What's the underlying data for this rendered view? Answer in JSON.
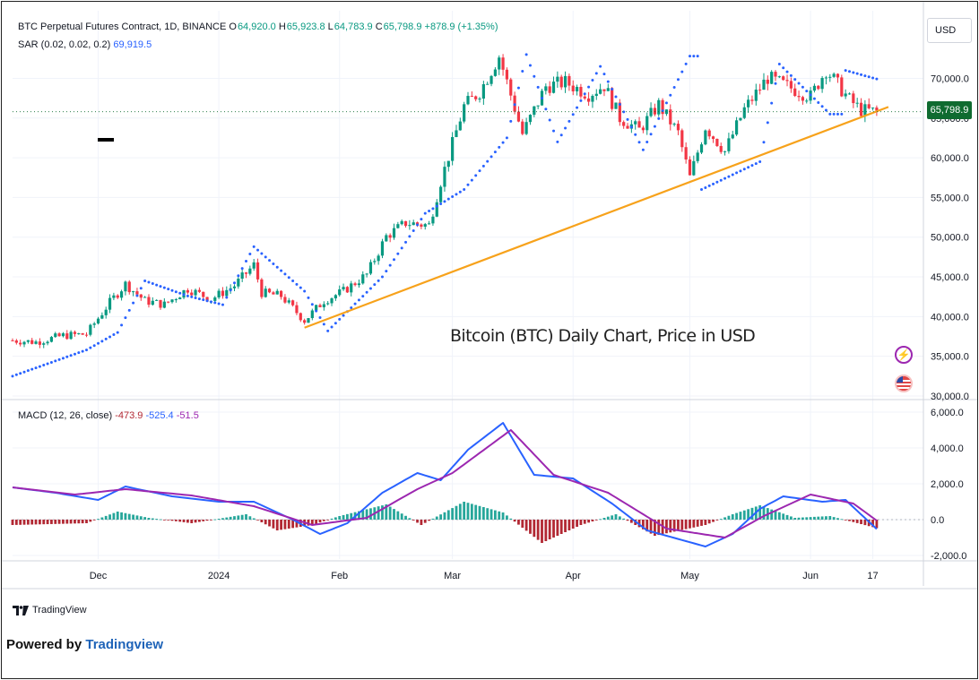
{
  "header": {
    "symbol": "BTC Perpetual Futures Contract, 1D, BINANCE",
    "open_label": "O",
    "open": "64,920.0",
    "high_label": "H",
    "high": "65,923.8",
    "low_label": "L",
    "low": "64,783.9",
    "close_label": "C",
    "close": "65,798.9",
    "change": "+878.9 (+1.35%)",
    "sar_label": "SAR (0.02, 0.02, 0.2)",
    "sar_value": "69,919.5",
    "macd_label": "MACD (12, 26, close)",
    "macd_hist": "-473.9",
    "macd_line": "-525.4",
    "macd_signal": "-51.5"
  },
  "currency_button": "USD",
  "last_price": "65,798.9",
  "annotation": "Bitcoin (BTC) Daily Chart, Price in USD",
  "footer": {
    "tv_logo": "TradingView",
    "powered_prefix": "Powered by ",
    "powered_brand": "Tradingview"
  },
  "icons": {
    "flash": "flash-icon",
    "flag": "us-flag-icon",
    "tv": "tradingview-logo-icon"
  },
  "colors": {
    "up": "#089981",
    "down": "#f23645",
    "sar": "#2962ff",
    "trendline": "#f7a21b",
    "macd": "#2962ff",
    "signal": "#9c27b0",
    "hist_up": "#26a69a",
    "hist_down": "#b22833"
  },
  "chart_data": [
    {
      "type": "candlestick",
      "title": "BTC Perpetual Futures Contract, 1D, BINANCE",
      "ylim": [
        30000,
        74000
      ],
      "y_ticks": [
        30000,
        35000,
        40000,
        45000,
        50000,
        55000,
        60000,
        65000,
        70000
      ],
      "y_tick_labels": [
        "30,000.0",
        "35,000.0",
        "40,000.0",
        "45,000.0",
        "50,000.0",
        "55,000.0",
        "60,000.0",
        "65,000.0",
        "70,000.0"
      ],
      "x_tick_labels": [
        {
          "label": "Dec",
          "date": "2023-12-01"
        },
        {
          "label": "2024",
          "date": "2024-01-01"
        },
        {
          "label": "Feb",
          "date": "2024-02-01"
        },
        {
          "label": "Mar",
          "date": "2024-03-01"
        },
        {
          "label": "Apr",
          "date": "2024-04-01"
        },
        {
          "label": "May",
          "date": "2024-05-01"
        },
        {
          "label": "Jun",
          "date": "2024-06-01"
        },
        {
          "label": "17",
          "date": "2024-06-17"
        }
      ],
      "x_range": [
        "2023-11-09",
        "2024-06-30"
      ],
      "close_points": [
        [
          "2023-11-09",
          37000
        ],
        [
          "2023-11-15",
          36800
        ],
        [
          "2023-11-22",
          37600
        ],
        [
          "2023-11-28",
          37800
        ],
        [
          "2023-12-04",
          41800
        ],
        [
          "2023-12-08",
          44100
        ],
        [
          "2023-12-13",
          42000
        ],
        [
          "2023-12-18",
          41500
        ],
        [
          "2023-12-24",
          43500
        ],
        [
          "2023-12-30",
          42200
        ],
        [
          "2024-01-05",
          43900
        ],
        [
          "2024-01-10",
          46500
        ],
        [
          "2024-01-12",
          43000
        ],
        [
          "2024-01-17",
          42600
        ],
        [
          "2024-01-23",
          39500
        ],
        [
          "2024-01-28",
          42000
        ],
        [
          "2024-02-02",
          43200
        ],
        [
          "2024-02-08",
          45300
        ],
        [
          "2024-02-13",
          50100
        ],
        [
          "2024-02-18",
          51800
        ],
        [
          "2024-02-24",
          51500
        ],
        [
          "2024-02-27",
          57000
        ],
        [
          "2024-03-04",
          66500
        ],
        [
          "2024-03-08",
          68300
        ],
        [
          "2024-03-13",
          72800
        ],
        [
          "2024-03-19",
          63000
        ],
        [
          "2024-03-25",
          69000
        ],
        [
          "2024-03-30",
          69500
        ],
        [
          "2024-04-05",
          68000
        ],
        [
          "2024-04-09",
          69100
        ],
        [
          "2024-04-13",
          65000
        ],
        [
          "2024-04-18",
          63500
        ],
        [
          "2024-04-23",
          66700
        ],
        [
          "2024-04-28",
          63100
        ],
        [
          "2024-05-01",
          57500
        ],
        [
          "2024-05-05",
          63900
        ],
        [
          "2024-05-10",
          60800
        ],
        [
          "2024-05-15",
          66100
        ],
        [
          "2024-05-21",
          70100
        ],
        [
          "2024-05-26",
          69000
        ],
        [
          "2024-06-01",
          67700
        ],
        [
          "2024-06-05",
          71100
        ],
        [
          "2024-06-11",
          67300
        ],
        [
          "2024-06-14",
          66000
        ],
        [
          "2024-06-18",
          65798.9
        ]
      ],
      "sar_points": [
        [
          "2023-11-09",
          32500
        ],
        [
          "2023-11-28",
          35800
        ],
        [
          "2023-12-06",
          38000
        ],
        [
          "2023-12-13",
          44500
        ],
        [
          "2023-12-24",
          42600
        ],
        [
          "2024-01-02",
          41500
        ],
        [
          "2024-01-10",
          48800
        ],
        [
          "2024-01-23",
          43200
        ],
        [
          "2024-01-29",
          38200
        ],
        [
          "2024-02-12",
          45000
        ],
        [
          "2024-02-23",
          53000
        ],
        [
          "2024-03-04",
          56000
        ],
        [
          "2024-03-15",
          62500
        ],
        [
          "2024-03-20",
          73000
        ],
        [
          "2024-03-28",
          62000
        ],
        [
          "2024-04-08",
          71500
        ],
        [
          "2024-04-19",
          61000
        ],
        [
          "2024-05-01",
          72800
        ],
        [
          "2024-05-04",
          56000
        ],
        [
          "2024-05-19",
          59500
        ],
        [
          "2024-05-24",
          71800
        ],
        [
          "2024-06-06",
          65500
        ],
        [
          "2024-06-10",
          71000
        ],
        [
          "2024-06-18",
          69919.5
        ]
      ],
      "trendline": [
        [
          "2024-01-23",
          38600
        ],
        [
          "2024-06-21",
          66400
        ]
      ]
    },
    {
      "type": "line",
      "title": "MACD (12, 26, close)",
      "ylim": [
        -2200,
        6500
      ],
      "y_ticks": [
        -2000,
        0,
        2000,
        4000,
        6000
      ],
      "y_tick_labels": [
        "-2,000.0",
        "0.0",
        "2,000.0",
        "4,000.0",
        "6,000.0"
      ],
      "series": [
        {
          "name": "MACD",
          "points": [
            [
              "2023-11-09",
              1800
            ],
            [
              "2023-11-20",
              1500
            ],
            [
              "2023-12-01",
              1100
            ],
            [
              "2023-12-08",
              1850
            ],
            [
              "2023-12-20",
              1300
            ],
            [
              "2024-01-01",
              1000
            ],
            [
              "2024-01-10",
              1000
            ],
            [
              "2024-01-20",
              0
            ],
            [
              "2024-01-27",
              -800
            ],
            [
              "2024-02-03",
              -200
            ],
            [
              "2024-02-12",
              1500
            ],
            [
              "2024-02-21",
              2600
            ],
            [
              "2024-02-27",
              2200
            ],
            [
              "2024-03-05",
              3900
            ],
            [
              "2024-03-14",
              5400
            ],
            [
              "2024-03-22",
              2500
            ],
            [
              "2024-04-01",
              2300
            ],
            [
              "2024-04-11",
              900
            ],
            [
              "2024-04-20",
              -600
            ],
            [
              "2024-04-30",
              -1200
            ],
            [
              "2024-05-05",
              -1500
            ],
            [
              "2024-05-12",
              -800
            ],
            [
              "2024-05-19",
              600
            ],
            [
              "2024-05-25",
              1300
            ],
            [
              "2024-06-04",
              1000
            ],
            [
              "2024-06-10",
              1100
            ],
            [
              "2024-06-18",
              -525.4
            ]
          ]
        },
        {
          "name": "Signal",
          "points": [
            [
              "2023-11-09",
              1800
            ],
            [
              "2023-11-25",
              1400
            ],
            [
              "2023-12-08",
              1700
            ],
            [
              "2023-12-25",
              1350
            ],
            [
              "2024-01-10",
              750
            ],
            [
              "2024-01-25",
              -300
            ],
            [
              "2024-02-08",
              100
            ],
            [
              "2024-02-21",
              1700
            ],
            [
              "2024-03-01",
              2600
            ],
            [
              "2024-03-16",
              5000
            ],
            [
              "2024-03-27",
              2500
            ],
            [
              "2024-04-10",
              1500
            ],
            [
              "2024-04-25",
              -500
            ],
            [
              "2024-05-10",
              -1000
            ],
            [
              "2024-05-20",
              200
            ],
            [
              "2024-06-01",
              1400
            ],
            [
              "2024-06-12",
              900
            ],
            [
              "2024-06-18",
              -51.5
            ]
          ]
        }
      ],
      "histogram_envelope": [
        [
          "2023-11-09",
          -300
        ],
        [
          "2023-11-28",
          -200
        ],
        [
          "2023-12-06",
          450
        ],
        [
          "2023-12-14",
          100
        ],
        [
          "2023-12-25",
          -200
        ],
        [
          "2024-01-08",
          300
        ],
        [
          "2024-01-16",
          -600
        ],
        [
          "2024-01-25",
          -300
        ],
        [
          "2024-02-01",
          200
        ],
        [
          "2024-02-13",
          850
        ],
        [
          "2024-02-22",
          -300
        ],
        [
          "2024-03-04",
          1000
        ],
        [
          "2024-03-14",
          400
        ],
        [
          "2024-03-24",
          -1300
        ],
        [
          "2024-04-03",
          -300
        ],
        [
          "2024-04-12",
          300
        ],
        [
          "2024-04-22",
          -900
        ],
        [
          "2024-05-05",
          -300
        ],
        [
          "2024-05-12",
          300
        ],
        [
          "2024-05-19",
          800
        ],
        [
          "2024-05-28",
          100
        ],
        [
          "2024-06-06",
          200
        ],
        [
          "2024-06-18",
          -473.9
        ]
      ]
    }
  ]
}
